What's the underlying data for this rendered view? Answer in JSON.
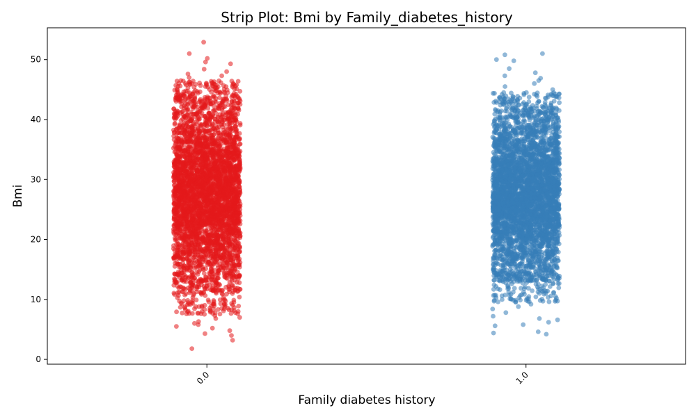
{
  "chart_data": {
    "type": "scatter",
    "subtype": "strip",
    "title": "Strip Plot: Bmi by Family_diabetes_history",
    "xlabel": "Family diabetes history",
    "ylabel": "Bmi",
    "categories": [
      "0.0",
      "1.0"
    ],
    "ylim": [
      -0.8,
      55.3
    ],
    "yticks": [
      0,
      10,
      20,
      30,
      40,
      50
    ],
    "grid": false,
    "legend": "none",
    "series": [
      {
        "category": "0.0",
        "color": "#e41a1c",
        "opacity": 0.55,
        "dense_range": [
          11,
          44
        ],
        "core_mean": 27.5,
        "core_sd": 6.5,
        "outliers": [
          1.8,
          3.2,
          4.0,
          4.3,
          4.8,
          5.2,
          5.5,
          5.8,
          6.0,
          6.3,
          6.8,
          7.0,
          7.3,
          7.6,
          8.0,
          8.3,
          8.8,
          9.2,
          46.0,
          46.5,
          47.0,
          47.3,
          47.6,
          48.0,
          48.4,
          49.3,
          49.6,
          50.2,
          51.0,
          52.9
        ]
      },
      {
        "category": "1.0",
        "color": "#377eb8",
        "opacity": 0.55,
        "dense_range": [
          13,
          42
        ],
        "core_mean": 27.5,
        "core_sd": 6.0,
        "outliers": [
          4.2,
          4.4,
          4.6,
          5.6,
          5.8,
          6.2,
          6.6,
          6.8,
          7.2,
          7.8,
          8.4,
          8.8,
          9.2,
          9.6,
          44.5,
          45.0,
          45.5,
          46.0,
          46.5,
          46.9,
          47.3,
          47.8,
          48.5,
          49.8,
          50.0,
          50.8,
          51.0
        ]
      }
    ]
  }
}
